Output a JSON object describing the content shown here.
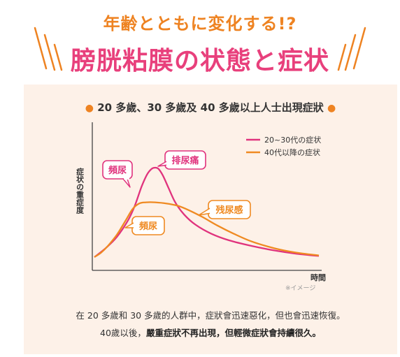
{
  "header": {
    "subtitle": "年齢とともに変化する!?",
    "title": "膀胱粘膜の状態と症状"
  },
  "panel_title": "20 多歲、30 多歲及 40 多歲以上人士出現症狀",
  "colors": {
    "pink": "#e0337d",
    "orange": "#ef8a22",
    "panel_bg": "#fdf1e8"
  },
  "chart_data": {
    "type": "line",
    "title": "20 多歲、30 多歲及 40 多歲以上人士出現症狀",
    "xlabel": "時間",
    "ylabel": "症状の重症度",
    "note": "※イメージ",
    "xlim": [
      0,
      100
    ],
    "ylim": [
      0,
      100
    ],
    "legend_position": "top-right",
    "series": [
      {
        "name": "20~30代の症状",
        "color": "#e0337d",
        "points": [
          [
            0,
            0
          ],
          [
            5,
            8
          ],
          [
            10,
            18
          ],
          [
            15,
            33
          ],
          [
            18,
            46
          ],
          [
            21,
            63
          ],
          [
            23.5,
            74
          ],
          [
            25.5,
            79
          ],
          [
            27,
            80
          ],
          [
            28.5,
            79
          ],
          [
            30.5,
            73
          ],
          [
            33,
            62
          ],
          [
            36,
            49
          ],
          [
            40,
            38
          ],
          [
            45,
            29
          ],
          [
            52,
            21
          ],
          [
            60,
            15
          ],
          [
            70,
            10
          ],
          [
            80,
            6
          ],
          [
            90,
            3
          ],
          [
            100,
            1
          ]
        ]
      },
      {
        "name": "40代以降の症状",
        "color": "#ef8a22",
        "points": [
          [
            0,
            0
          ],
          [
            3,
            4
          ],
          [
            6,
            10
          ],
          [
            10,
            20
          ],
          [
            14,
            33
          ],
          [
            17,
            43
          ],
          [
            20,
            48
          ],
          [
            23,
            49
          ],
          [
            27,
            49
          ],
          [
            32,
            48
          ],
          [
            37,
            46
          ],
          [
            42,
            42
          ],
          [
            48,
            36
          ],
          [
            55,
            28
          ],
          [
            62,
            21
          ],
          [
            70,
            14
          ],
          [
            80,
            8
          ],
          [
            90,
            4
          ],
          [
            100,
            1.5
          ]
        ]
      }
    ],
    "annotations": [
      {
        "text": "頻尿",
        "color": "#e0337d"
      },
      {
        "text": "排尿痛",
        "color": "#e0337d"
      },
      {
        "text": "頻尿",
        "color": "#ef8a22"
      },
      {
        "text": "残尿感",
        "color": "#ef8a22"
      }
    ]
  },
  "caption": {
    "line1": "在 20 多歲和 30 多歲的人群中，症狀會迅速惡化，但也會迅速恢復。",
    "line2_prefix": "40歲以後，",
    "line2_bold": "嚴重症狀不再出現，但輕微症狀會持續很久。"
  }
}
